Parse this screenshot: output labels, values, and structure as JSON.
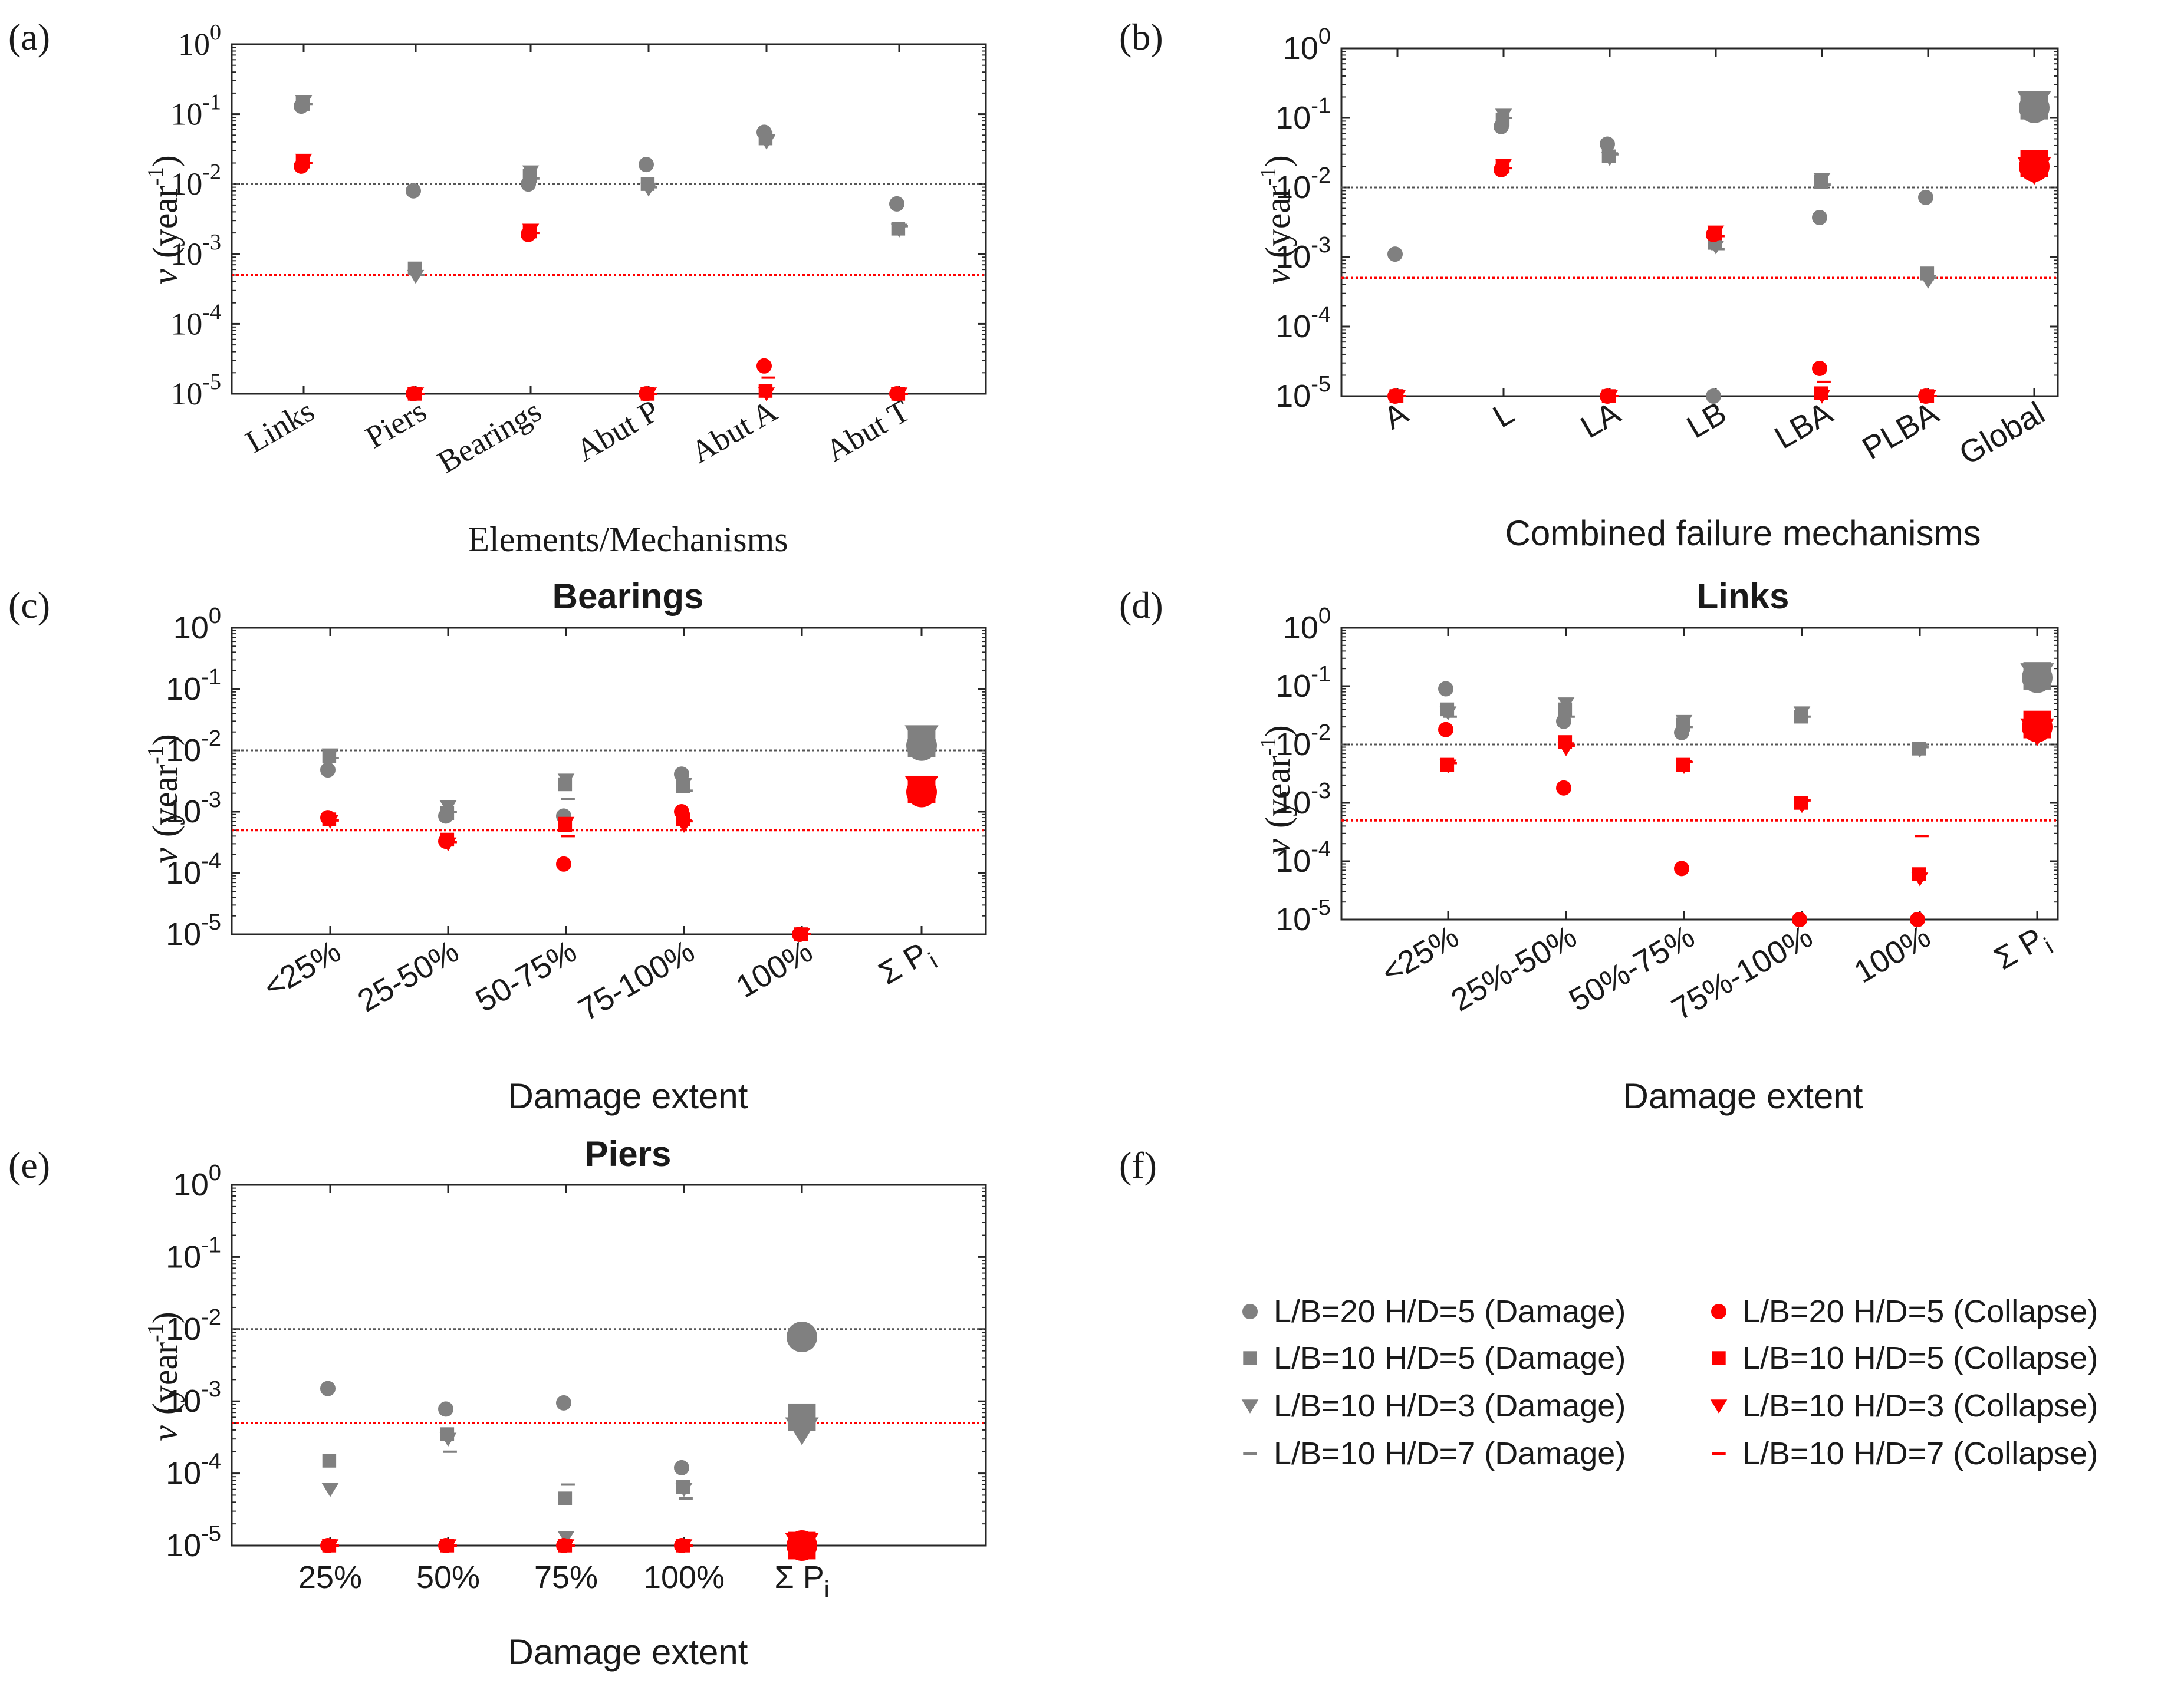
{
  "figure": {
    "damage_color": "#808080",
    "collapse_color": "#ff0000",
    "damage_ref_line": 0.01,
    "collapse_ref_line": 0.0005,
    "ylabel_symbol": "ν",
    "ylabel_unit": "(year",
    "ylabel_exp": "-1",
    "ylabel_close": ")"
  },
  "legend": {
    "panel_label": "(f)",
    "entries": [
      {
        "label": "L/B=20 H/D=5 (Damage)",
        "marker": "circle",
        "color": "#808080"
      },
      {
        "label": "L/B=10 H/D=5 (Damage)",
        "marker": "square",
        "color": "#808080"
      },
      {
        "label": "L/B=10 H/D=3 (Damage)",
        "marker": "triangle",
        "color": "#808080"
      },
      {
        "label": "L/B=10 H/D=7 (Damage)",
        "marker": "dash",
        "color": "#808080"
      },
      {
        "label": "L/B=20 H/D=5 (Collapse)",
        "marker": "circle",
        "color": "#ff0000"
      },
      {
        "label": "L/B=10 H/D=5 (Collapse)",
        "marker": "square",
        "color": "#ff0000"
      },
      {
        "label": "L/B=10 H/D=3 (Collapse)",
        "marker": "triangle",
        "color": "#ff0000"
      },
      {
        "label": "L/B=10 H/D=7 (Collapse)",
        "marker": "dash",
        "color": "#ff0000"
      }
    ]
  },
  "chart_data": [
    {
      "panel": "(a)",
      "type": "scatter",
      "title": "",
      "yscale": "log",
      "ylim": [
        1e-05,
        1
      ],
      "xlabel": "Elements/Mechanisms",
      "serif": true,
      "rotated": true,
      "yticks": [
        "10",
        "10",
        "10",
        "10",
        "10",
        "10"
      ],
      "ytick_exps": [
        "-5",
        "-4",
        "-3",
        "-2",
        "-1",
        "0"
      ],
      "categories": [
        "Links",
        "Piers",
        "Bearings",
        "Abut P",
        "Abut A",
        "Abut T"
      ],
      "series": [
        {
          "name": "L/B=20 H/D=5 (Damage)",
          "values": [
            0.13,
            0.008,
            0.01,
            0.019,
            0.055,
            0.0052
          ]
        },
        {
          "name": "L/B=10 H/D=5 (Damage)",
          "values": [
            0.14,
            0.00062,
            0.013,
            0.01,
            0.045,
            0.0023
          ]
        },
        {
          "name": "L/B=10 H/D=3 (Damage)",
          "values": [
            0.15,
            0.00048,
            0.015,
            0.0085,
            0.04,
            0.0022
          ]
        },
        {
          "name": "L/B=10 H/D=7 (Damage)",
          "values": [
            0.14,
            0.0005,
            0.012,
            0.009,
            0.05,
            0.0025
          ]
        },
        {
          "name": "L/B=20 H/D=5 (Collapse)",
          "values": [
            0.018,
            1e-05,
            0.0019,
            1e-05,
            2.5e-05,
            1e-05
          ]
        },
        {
          "name": "L/B=10 H/D=5 (Collapse)",
          "values": [
            0.021,
            1e-05,
            0.0021,
            1e-05,
            1.1e-05,
            1e-05
          ]
        },
        {
          "name": "L/B=10 H/D=3 (Collapse)",
          "values": [
            0.022,
            1e-05,
            0.0022,
            1e-05,
            1e-05,
            1e-05
          ]
        },
        {
          "name": "L/B=10 H/D=7 (Collapse)",
          "values": [
            0.02,
            1e-05,
            0.002,
            1e-05,
            1.7e-05,
            1e-05
          ]
        }
      ]
    },
    {
      "panel": "(b)",
      "type": "scatter",
      "title": "",
      "yscale": "log",
      "ylim": [
        1e-05,
        1
      ],
      "xlabel": "Combined failure mechanisms",
      "serif": false,
      "rotated": true,
      "yticks": [
        "10",
        "10",
        "10",
        "10",
        "10",
        "10"
      ],
      "ytick_exps": [
        "-5",
        "-4",
        "-3",
        "-2",
        "-1",
        "0"
      ],
      "categories": [
        "A",
        "L",
        "LA",
        "LB",
        "LBA",
        "PLBA",
        "Global"
      ],
      "series": [
        {
          "name": "L/B=20 H/D=5 (Damage)",
          "values": [
            0.0011,
            0.075,
            0.042,
            1e-05,
            0.0037,
            0.0072,
            0.14
          ]
        },
        {
          "name": "L/B=10 H/D=5 (Damage)",
          "values": [
            1e-05,
            0.095,
            0.028,
            0.0016,
            0.012,
            0.00058,
            0.15
          ]
        },
        {
          "name": "L/B=10 H/D=3 (Damage)",
          "values": [
            1e-05,
            0.11,
            0.026,
            0.0014,
            0.013,
            0.00045,
            0.16
          ]
        },
        {
          "name": "L/B=10 H/D=7 (Damage)",
          "values": [
            1e-05,
            0.1,
            0.03,
            0.0013,
            0.011,
            0.0005,
            0.15
          ]
        },
        {
          "name": "L/B=20 H/D=5 (Collapse)",
          "values": [
            1e-05,
            0.018,
            1e-05,
            0.0021,
            2.5e-05,
            1e-05,
            0.02
          ]
        },
        {
          "name": "L/B=10 H/D=5 (Collapse)",
          "values": [
            1e-05,
            0.02,
            1e-05,
            0.0022,
            1.1e-05,
            1e-05,
            0.022
          ]
        },
        {
          "name": "L/B=10 H/D=3 (Collapse)",
          "values": [
            1e-05,
            0.021,
            1e-05,
            0.0023,
            1e-05,
            1e-05,
            0.018
          ]
        },
        {
          "name": "L/B=10 H/D=7 (Collapse)",
          "values": [
            1e-05,
            0.019,
            1e-05,
            0.002,
            1.6e-05,
            1e-05,
            0.02
          ]
        }
      ]
    },
    {
      "panel": "(c)",
      "type": "scatter",
      "title": "Bearings",
      "yscale": "log",
      "ylim": [
        1e-05,
        1
      ],
      "xlabel": "Damage extent",
      "serif": false,
      "rotated": true,
      "yticks": [
        "10",
        "10",
        "10",
        "10",
        "10",
        "10"
      ],
      "ytick_exps": [
        "-5",
        "-4",
        "-3",
        "-2",
        "-1",
        "0"
      ],
      "categories": [
        "<25%",
        "25-50%",
        "50-75%",
        "75-100%",
        "100%",
        "Σ P"
      ],
      "category_subs": [
        "",
        "",
        "",
        "",
        "",
        "i"
      ],
      "series": [
        {
          "name": "L/B=20 H/D=5 (Damage)",
          "values": [
            0.0048,
            0.00085,
            0.00085,
            0.0041,
            1e-05,
            0.012
          ]
        },
        {
          "name": "L/B=10 H/D=5 (Damage)",
          "values": [
            0.008,
            0.00095,
            0.0028,
            0.0026,
            1e-05,
            0.013
          ]
        },
        {
          "name": "L/B=10 H/D=3 (Damage)",
          "values": [
            0.0085,
            0.0012,
            0.0033,
            0.0028,
            1e-05,
            0.016
          ]
        },
        {
          "name": "L/B=10 H/D=7 (Damage)",
          "values": [
            0.0075,
            0.001,
            0.0016,
            0.0022,
            1e-05,
            0.013
          ]
        },
        {
          "name": "L/B=20 H/D=5 (Collapse)",
          "values": [
            0.0008,
            0.00033,
            0.00014,
            0.001,
            1e-05,
            0.0021
          ]
        },
        {
          "name": "L/B=10 H/D=5 (Collapse)",
          "values": [
            0.00075,
            0.00035,
            0.0006,
            0.00075,
            1e-05,
            0.0023
          ]
        },
        {
          "name": "L/B=10 H/D=3 (Collapse)",
          "values": [
            0.0007,
            0.0003,
            0.00065,
            0.0006,
            1e-05,
            0.0024
          ]
        },
        {
          "name": "L/B=10 H/D=7 (Collapse)",
          "values": [
            0.00072,
            0.00032,
            0.0004,
            0.0007,
            1e-05,
            0.0022
          ]
        }
      ]
    },
    {
      "panel": "(d)",
      "type": "scatter",
      "title": "Links",
      "yscale": "log",
      "ylim": [
        1e-05,
        1
      ],
      "xlabel": "Damage extent",
      "serif": false,
      "rotated": true,
      "yticks": [
        "10",
        "10",
        "10",
        "10",
        "10",
        "10"
      ],
      "ytick_exps": [
        "-5",
        "-4",
        "-3",
        "-2",
        "-1",
        "0"
      ],
      "categories": [
        "<25%",
        "25%-50%",
        "50%-75%",
        "75%-100%",
        "100%",
        "Σ P"
      ],
      "category_subs": [
        "",
        "",
        "",
        "",
        "",
        "i"
      ],
      "series": [
        {
          "name": "L/B=20 H/D=5 (Damage)",
          "values": [
            0.09,
            0.025,
            0.016,
            1e-05,
            1e-05,
            0.14
          ]
        },
        {
          "name": "L/B=10 H/D=5 (Damage)",
          "values": [
            0.04,
            0.04,
            0.022,
            0.03,
            0.0085,
            0.15
          ]
        },
        {
          "name": "L/B=10 H/D=3 (Damage)",
          "values": [
            0.035,
            0.05,
            0.025,
            0.035,
            0.008,
            0.15
          ]
        },
        {
          "name": "L/B=10 H/D=7 (Damage)",
          "values": [
            0.03,
            0.03,
            0.02,
            0.03,
            0.009,
            0.14
          ]
        },
        {
          "name": "L/B=20 H/D=5 (Collapse)",
          "values": [
            0.018,
            0.0018,
            7.5e-05,
            1e-05,
            1e-05,
            0.02
          ]
        },
        {
          "name": "L/B=10 H/D=5 (Collapse)",
          "values": [
            0.0045,
            0.011,
            0.0045,
            0.001,
            6e-05,
            0.022
          ]
        },
        {
          "name": "L/B=10 H/D=3 (Collapse)",
          "values": [
            0.0043,
            0.0085,
            0.0042,
            0.0009,
            5e-05,
            0.017
          ]
        },
        {
          "name": "L/B=10 H/D=7 (Collapse)",
          "values": [
            0.0048,
            0.0095,
            0.005,
            0.0011,
            0.00027,
            0.02
          ]
        }
      ]
    },
    {
      "panel": "(e)",
      "type": "scatter",
      "title": "Piers",
      "yscale": "log",
      "ylim": [
        1e-05,
        1
      ],
      "xlabel": "Damage extent",
      "serif": false,
      "rotated": false,
      "yticks": [
        "10",
        "10",
        "10",
        "10",
        "10",
        "10"
      ],
      "ytick_exps": [
        "-5",
        "-4",
        "-3",
        "-2",
        "-1",
        "0"
      ],
      "categories": [
        "25%",
        "50%",
        "75%",
        "100%",
        "Σ P"
      ],
      "category_subs": [
        "",
        "",
        "",
        "",
        "i"
      ],
      "series": [
        {
          "name": "L/B=20 H/D=5 (Damage)",
          "values": [
            0.0015,
            0.00078,
            0.00095,
            0.00012,
            0.0078
          ]
        },
        {
          "name": "L/B=10 H/D=5 (Damage)",
          "values": [
            0.00015,
            0.00035,
            4.5e-05,
            6.5e-05,
            0.0006
          ]
        },
        {
          "name": "L/B=10 H/D=3 (Damage)",
          "values": [
            6e-05,
            0.0003,
            1.3e-05,
            6e-05,
            0.0004
          ]
        },
        {
          "name": "L/B=10 H/D=7 (Damage)",
          "values": [
            1e-05,
            0.0002,
            7e-05,
            4.5e-05,
            0.0005
          ]
        },
        {
          "name": "L/B=20 H/D=5 (Collapse)",
          "values": [
            1e-05,
            1e-05,
            1e-05,
            1e-05,
            1e-05
          ]
        },
        {
          "name": "L/B=10 H/D=5 (Collapse)",
          "values": [
            1e-05,
            1e-05,
            1e-05,
            1e-05,
            1e-05
          ]
        },
        {
          "name": "L/B=10 H/D=3 (Collapse)",
          "values": [
            1e-05,
            1e-05,
            1e-05,
            1e-05,
            1e-05
          ]
        },
        {
          "name": "L/B=10 H/D=7 (Collapse)",
          "values": [
            1e-05,
            1e-05,
            1e-05,
            1e-05,
            1e-05
          ]
        }
      ]
    }
  ]
}
